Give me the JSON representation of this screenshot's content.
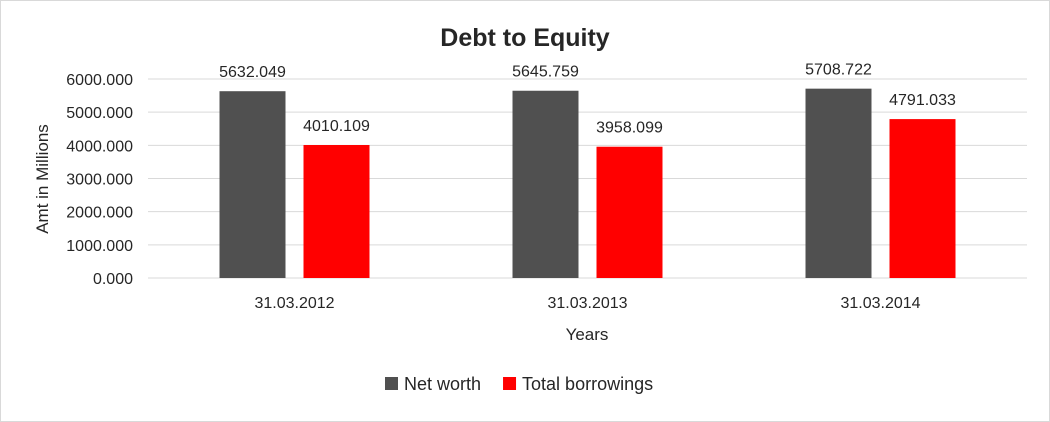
{
  "chart_data": {
    "type": "bar",
    "title": "Debt to Equity",
    "xlabel": "Years",
    "ylabel": "Amt in Millions",
    "categories": [
      "31.03.2012",
      "31.03.2013",
      "31.03.2014"
    ],
    "series": [
      {
        "name": "Net worth",
        "values": [
          5632.049,
          5645.759,
          5708.722
        ],
        "color": "#505050"
      },
      {
        "name": "Total borrowings",
        "values": [
          4010.109,
          3958.099,
          4791.033
        ],
        "color": "#ff0000"
      }
    ],
    "data_labels": [
      [
        "5632.049",
        "5645.759",
        "5708.722"
      ],
      [
        "4010.109",
        "3958.099",
        "4791.033"
      ]
    ],
    "ylim": [
      0,
      6000
    ],
    "yticks": [
      "0.000",
      "1000.000",
      "2000.000",
      "3000.000",
      "4000.000",
      "5000.000",
      "6000.000"
    ],
    "grid": true,
    "legend_position": "bottom"
  }
}
